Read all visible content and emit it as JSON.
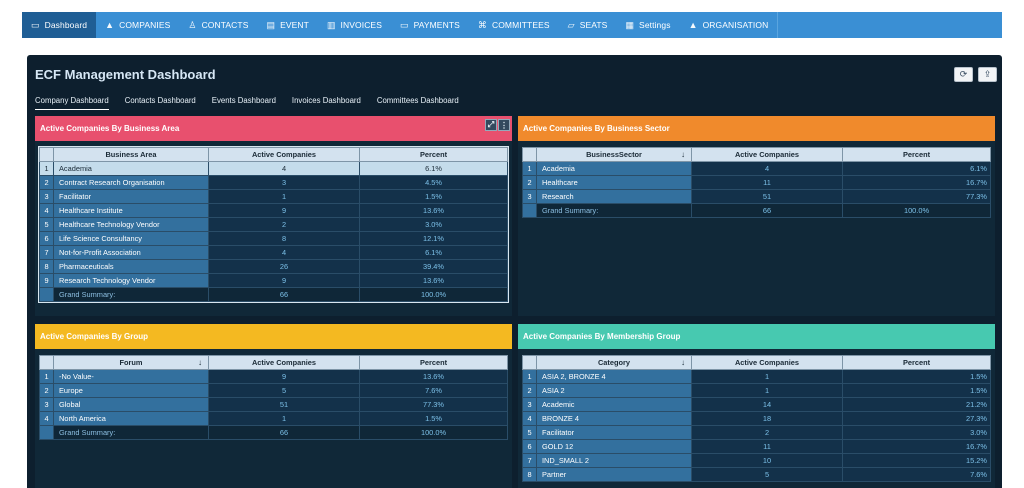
{
  "nav": [
    {
      "label": "Dashboard",
      "icon": "monitor-icon",
      "glyph": "▭",
      "active": true
    },
    {
      "label": "COMPANIES",
      "icon": "building-icon",
      "glyph": "▲"
    },
    {
      "label": "CONTACTS",
      "icon": "people-icon",
      "glyph": "♙"
    },
    {
      "label": "EVENT",
      "icon": "calendar-icon",
      "glyph": "▤"
    },
    {
      "label": "INVOICES",
      "icon": "document-icon",
      "glyph": "▥"
    },
    {
      "label": "PAYMENTS",
      "icon": "payment-icon",
      "glyph": "▭"
    },
    {
      "label": "COMMITTEES",
      "icon": "committee-icon",
      "glyph": "⌘"
    },
    {
      "label": "SEATS",
      "icon": "seat-icon",
      "glyph": "▱"
    },
    {
      "label": "Settings",
      "icon": "settings-grid-icon",
      "glyph": "▦"
    },
    {
      "label": "ORGANISATION",
      "icon": "organisation-icon",
      "glyph": "▲"
    }
  ],
  "dashboard": {
    "title": "ECF Management Dashboard",
    "refresh_glyph": "⟳",
    "export_glyph": "⇪",
    "tabs": [
      "Company Dashboard",
      "Contacts Dashboard",
      "Events Dashboard",
      "Invoices Dashboard",
      "Committees Dashboard"
    ]
  },
  "panels": {
    "area": {
      "title": "Active Companies By Business Area",
      "color": "#e8506e",
      "columns": [
        "Business Area",
        "Active Companies",
        "Percent"
      ],
      "rows": [
        {
          "n": "1",
          "label": "Academia",
          "count": "4",
          "pct": "6.1%"
        },
        {
          "n": "2",
          "label": "Contract Research Organisation",
          "count": "3",
          "pct": "4.5%"
        },
        {
          "n": "3",
          "label": "Facilitator",
          "count": "1",
          "pct": "1.5%"
        },
        {
          "n": "4",
          "label": "Healthcare Institute",
          "count": "9",
          "pct": "13.6%"
        },
        {
          "n": "5",
          "label": "Healthcare Technology Vendor",
          "count": "2",
          "pct": "3.0%"
        },
        {
          "n": "6",
          "label": "Life Science Consultancy",
          "count": "8",
          "pct": "12.1%"
        },
        {
          "n": "7",
          "label": "Not-for-Profit Association",
          "count": "4",
          "pct": "6.1%"
        },
        {
          "n": "8",
          "label": "Pharmaceuticals",
          "count": "26",
          "pct": "39.4%"
        },
        {
          "n": "9",
          "label": "Research Technology Vendor",
          "count": "9",
          "pct": "13.6%"
        }
      ],
      "summary": {
        "label": "Grand Summary:",
        "count": "66",
        "pct": "100.0%"
      },
      "expand_glyph": "⤢",
      "menu_glyph": "⋮"
    },
    "sector": {
      "title": "Active Companies By Business Sector",
      "color": "#f08a2c",
      "columns": [
        "BusinessSector",
        "Active Companies",
        "Percent"
      ],
      "rows": [
        {
          "n": "1",
          "label": "Academia",
          "count": "4",
          "pct": "6.1%"
        },
        {
          "n": "2",
          "label": "Healthcare",
          "count": "11",
          "pct": "16.7%"
        },
        {
          "n": "3",
          "label": "Research",
          "count": "51",
          "pct": "77.3%"
        }
      ],
      "summary": {
        "label": "Grand Summary:",
        "count": "66",
        "pct": "100.0%"
      }
    },
    "group": {
      "title": "Active Companies By Group",
      "color": "#f4b921",
      "columns": [
        "Forum",
        "Active Companies",
        "Percent"
      ],
      "rows": [
        {
          "n": "1",
          "label": "-No Value-",
          "count": "9",
          "pct": "13.6%"
        },
        {
          "n": "2",
          "label": "Europe",
          "count": "5",
          "pct": "7.6%"
        },
        {
          "n": "3",
          "label": "Global",
          "count": "51",
          "pct": "77.3%"
        },
        {
          "n": "4",
          "label": "North America",
          "count": "1",
          "pct": "1.5%"
        }
      ],
      "summary": {
        "label": "Grand Summary:",
        "count": "66",
        "pct": "100.0%"
      }
    },
    "membership": {
      "title": "Active Companies By Membership Group",
      "color": "#47c9b0",
      "columns": [
        "Category",
        "Active Companies",
        "Percent"
      ],
      "rows": [
        {
          "n": "1",
          "label": "ASIA 2, BRONZE 4",
          "count": "1",
          "pct": "1.5%"
        },
        {
          "n": "2",
          "label": "ASIA 2",
          "count": "1",
          "pct": "1.5%"
        },
        {
          "n": "3",
          "label": "Academic",
          "count": "14",
          "pct": "21.2%"
        },
        {
          "n": "4",
          "label": "BRONZE 4",
          "count": "18",
          "pct": "27.3%"
        },
        {
          "n": "5",
          "label": "Facilitator",
          "count": "2",
          "pct": "3.0%"
        },
        {
          "n": "6",
          "label": "GOLD 12",
          "count": "11",
          "pct": "16.7%"
        },
        {
          "n": "7",
          "label": "IND_SMALL 2",
          "count": "10",
          "pct": "15.2%"
        },
        {
          "n": "8",
          "label": "Partner",
          "count": "5",
          "pct": "7.6%"
        }
      ]
    }
  }
}
